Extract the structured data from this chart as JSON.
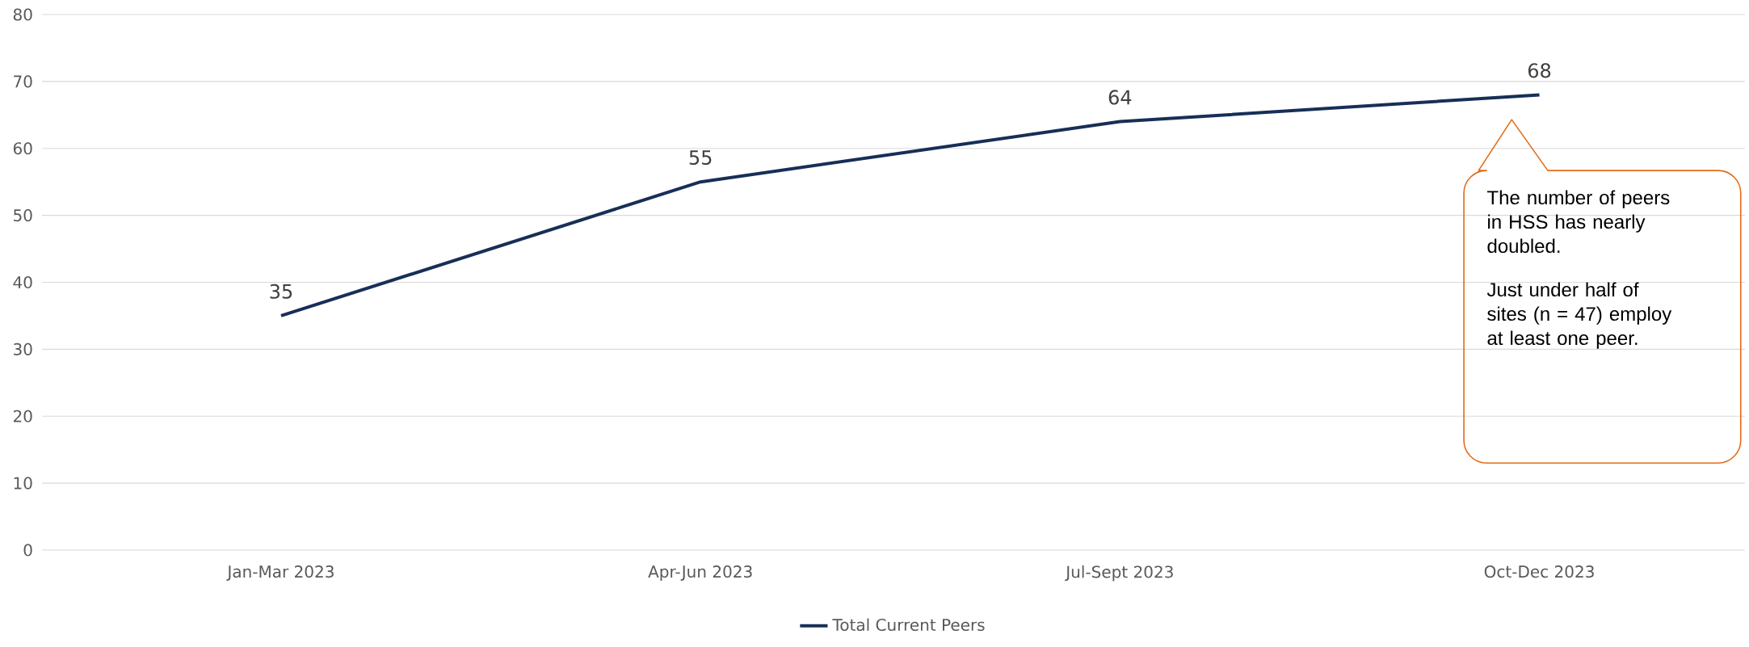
{
  "chart_data": {
    "type": "line",
    "categories": [
      "Jan-Mar 2023",
      "Apr-Jun 2023",
      "Jul-Sept 2023",
      "Oct-Dec 2023"
    ],
    "series": [
      {
        "name": "Total Current Peers",
        "color": "#172f57",
        "values": [
          35,
          55,
          64,
          68
        ]
      }
    ],
    "ylim": [
      0,
      80
    ],
    "yticks": [
      0,
      10,
      20,
      30,
      40,
      50,
      60,
      70,
      80
    ],
    "grid": "y",
    "legend": "bottom",
    "data_labels": true,
    "marker": "none",
    "line_style": "solid",
    "annotations": [
      "The number of peers in HSS has nearly doubled.",
      "Just under half of sites (n = 47) employ at least one peer."
    ]
  }
}
